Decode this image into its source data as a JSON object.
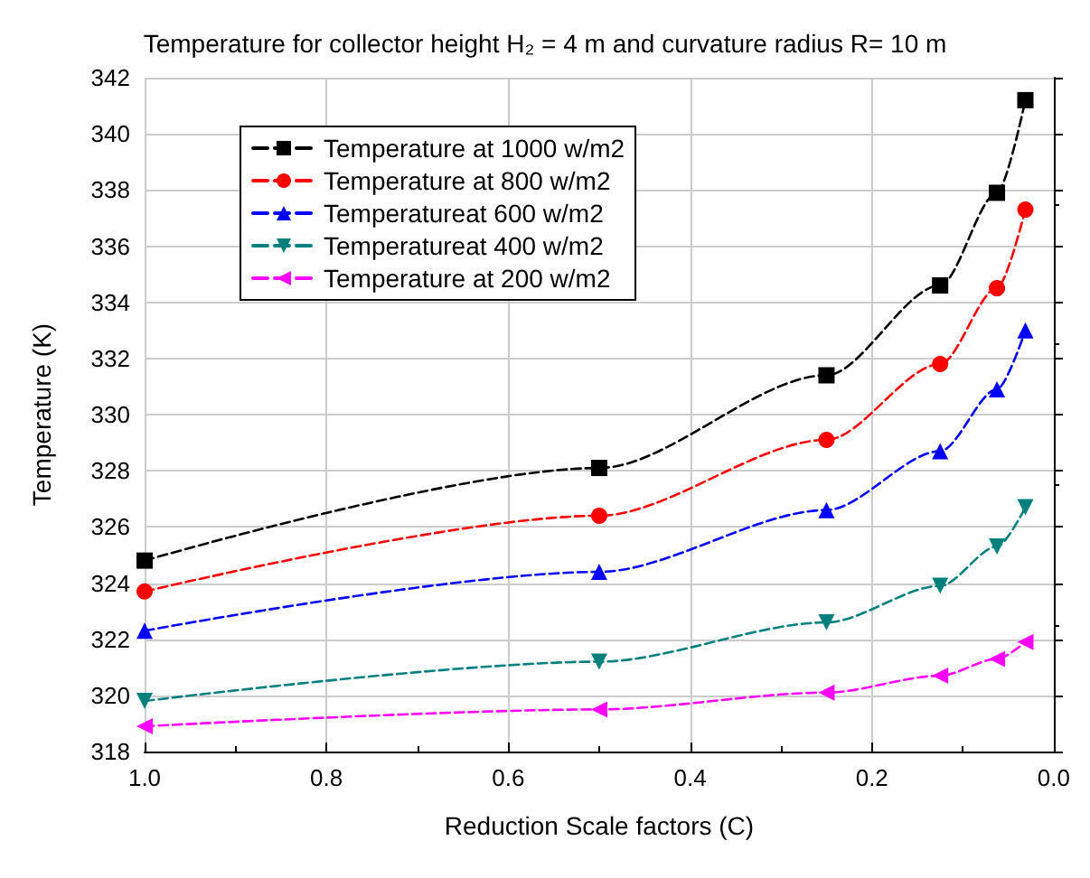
{
  "chart_data": {
    "type": "line",
    "title": "Temperature for collector height H₂ = 4 m and curvature radius R= 10 m",
    "xlabel": "Reduction Scale factors (C)",
    "ylabel": "Temperature (K)",
    "x": [
      1,
      0.5,
      0.25,
      0.125,
      0.0625,
      0.03125
    ],
    "series": [
      {
        "name": "Temperature at 1000 w/m2",
        "color": "#000000",
        "marker": "square",
        "values": [
          324.8,
          328.1,
          331.4,
          334.6,
          337.9,
          341.2
        ]
      },
      {
        "name": "Temperature at 800 w/m2",
        "color": "#ff0000",
        "marker": "circle",
        "values": [
          323.7,
          326.4,
          329.1,
          331.8,
          334.5,
          337.3
        ]
      },
      {
        "name": "Temperatureat 600 w/m2",
        "color": "#0000ff",
        "marker": "triangle",
        "values": [
          322.3,
          324.4,
          326.6,
          328.7,
          330.9,
          333.0
        ]
      },
      {
        "name": "Temperatureat 400 w/m2",
        "color": "#007f7f",
        "marker": "triangle-down",
        "values": [
          319.8,
          321.2,
          322.6,
          323.9,
          325.3,
          326.7
        ]
      },
      {
        "name": "Temperature at 200 w/m2",
        "color": "#ff00ff",
        "marker": "triangle-left",
        "values": [
          318.9,
          319.5,
          320.1,
          320.7,
          321.3,
          321.9
        ]
      }
    ],
    "xlim": [
      1.0,
      0.0
    ],
    "xticks": [
      {
        "value": 1.0,
        "label": "1.0"
      },
      0.8,
      0.6,
      0.4,
      0.2,
      {
        "value": 0.0,
        "label": "0.0"
      }
    ],
    "ylim": [
      318,
      342
    ],
    "yticks": [
      318,
      320,
      322,
      324,
      326,
      328,
      330,
      332,
      334,
      336,
      338,
      340,
      342
    ],
    "grid": true,
    "legend": "top left",
    "line_style": "dashed"
  }
}
